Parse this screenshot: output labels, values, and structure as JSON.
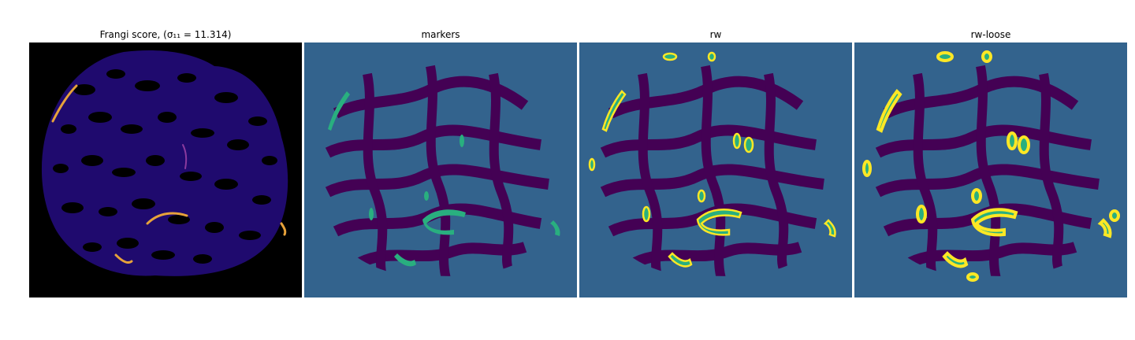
{
  "figure": {
    "panels": [
      {
        "title": "Frangi score, (σ₁₁ = 11.314)",
        "content": "vesselness map"
      },
      {
        "title": "markers",
        "content": "marker labels"
      },
      {
        "title": "rw",
        "content": "random walker segmentation"
      },
      {
        "title": "rw-loose",
        "content": "random walker segmentation (loose)"
      }
    ]
  },
  "colors": {
    "frangi_background": "#000000",
    "frangi_tissue": "#1f0a6e",
    "frangi_bright": "#e7a23a",
    "seg_background": "#33638d",
    "seg_tissue": "#440154",
    "seg_marker": "#29af7f",
    "seg_edge": "#fde725"
  }
}
